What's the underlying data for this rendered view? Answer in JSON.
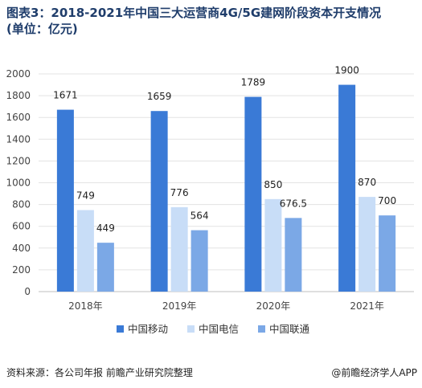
{
  "title_line1": "图表3：2018-2021年中国三大运营商4G/5G建网阶段资本开支情况",
  "title_line2": "(单位：亿元)",
  "source": "资料来源：各公司年报 前瞻产业研究院整理",
  "brand": "@前瞻经济学人APP",
  "colors": {
    "s1": "#3a7ad6",
    "s2": "#c8ddf7",
    "s3": "#7ba8e6",
    "grid": "#e3e3e3",
    "axis": "#bfbfbf"
  },
  "chart_data": {
    "type": "bar",
    "title": "图表3：2018-2021年中国三大运营商4G/5G建网阶段资本开支情况(单位：亿元)",
    "categories": [
      "2018年",
      "2019年",
      "2020年",
      "2021年"
    ],
    "series": [
      {
        "name": "中国移动",
        "values": [
          1671,
          1659,
          1789,
          1900
        ],
        "labels": [
          "1671",
          "1659",
          "1789",
          "1900"
        ]
      },
      {
        "name": "中国电信",
        "values": [
          749,
          776,
          850,
          870
        ],
        "labels": [
          "749",
          "776",
          "850",
          "870"
        ]
      },
      {
        "name": "中国联通",
        "values": [
          449,
          564,
          676.5,
          700
        ],
        "labels": [
          "449",
          "564",
          "676.5",
          "700"
        ]
      }
    ],
    "yticks": [
      "0",
      "200",
      "400",
      "600",
      "800",
      "1000",
      "1200",
      "1400",
      "1600",
      "1800",
      "2000"
    ],
    "ylim": [
      0,
      2000
    ],
    "grid": true,
    "legend": "bottom-center"
  }
}
